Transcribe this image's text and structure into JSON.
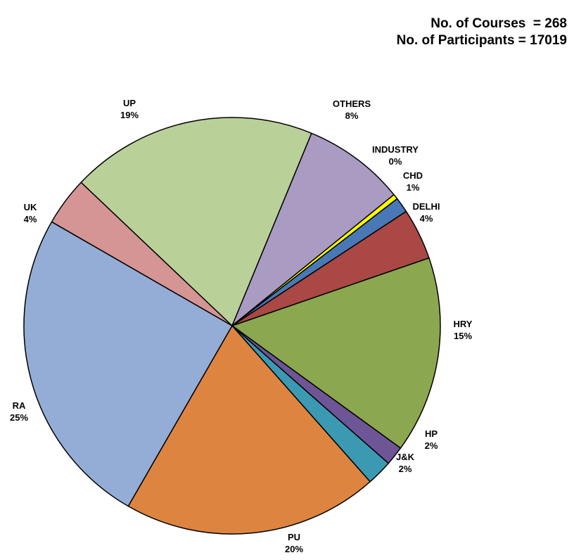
{
  "summary": {
    "courses": "No. of Courses  = 268",
    "participants": "No. of Participants = 17019"
  },
  "chart_data": {
    "type": "pie",
    "title": "",
    "start_category": "HRY",
    "direction": "clockwise",
    "categories": [
      "HRY",
      "HP",
      "J&K",
      "PU",
      "RA",
      "UK",
      "UP",
      "OTHERS",
      "INDUSTRY",
      "CHD",
      "DELHI"
    ],
    "values": [
      15.4,
      1.5,
      2.0,
      20.0,
      25.2,
      3.8,
      19.3,
      8.0,
      0.4,
      1.2,
      4.0
    ],
    "percent_labels": [
      "15%",
      "2%",
      "2%",
      "20%",
      "25%",
      "4%",
      "19%",
      "8%",
      "0%",
      "1%",
      "4%"
    ],
    "colors": [
      "#8BA74F",
      "#6E5596",
      "#3B9AB2",
      "#DE8441",
      "#94ADD6",
      "#D59594",
      "#B9D199",
      "#AA9BC2",
      "#FFFF00",
      "#4878B6",
      "#A94844"
    ],
    "legend": "none",
    "data_labels": "outside"
  }
}
